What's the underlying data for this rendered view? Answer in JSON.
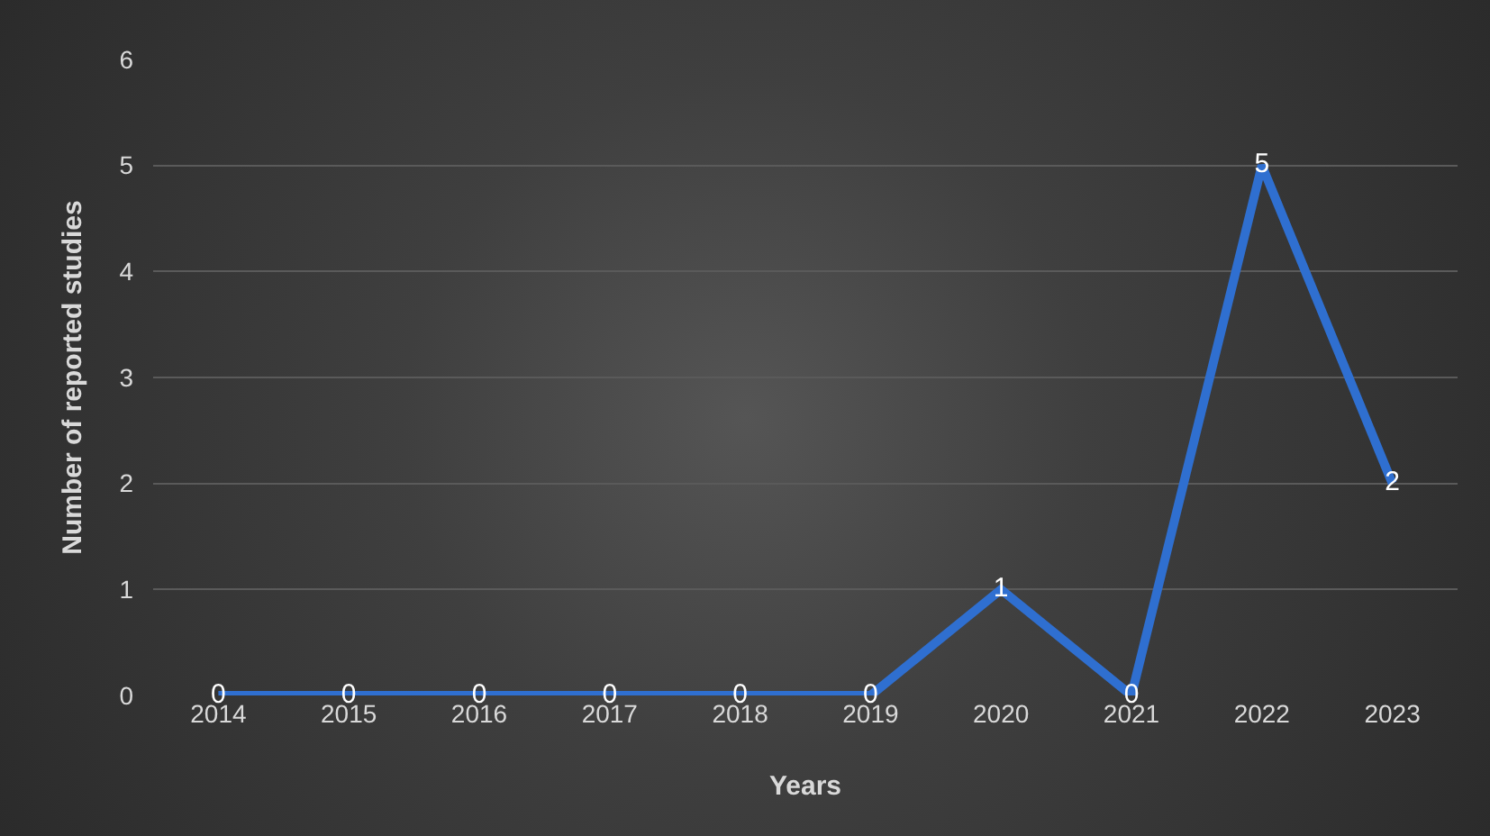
{
  "chart_data": {
    "type": "line",
    "xlabel": "Years",
    "ylabel": "Number of reported studies",
    "categories": [
      "2014",
      "2015",
      "2016",
      "2017",
      "2018",
      "2019",
      "2020",
      "2021",
      "2022",
      "2023"
    ],
    "series": [
      {
        "color": "#2f6fd0",
        "values": [
          0,
          0,
          0,
          0,
          0,
          0,
          1,
          0,
          5,
          2
        ]
      }
    ],
    "ylim": [
      0,
      6
    ],
    "yticks": [
      0,
      1,
      2,
      3,
      4,
      5,
      6
    ],
    "grid": "y",
    "data_labels": true,
    "marker": "none",
    "line_style": "solid",
    "legend": false
  }
}
